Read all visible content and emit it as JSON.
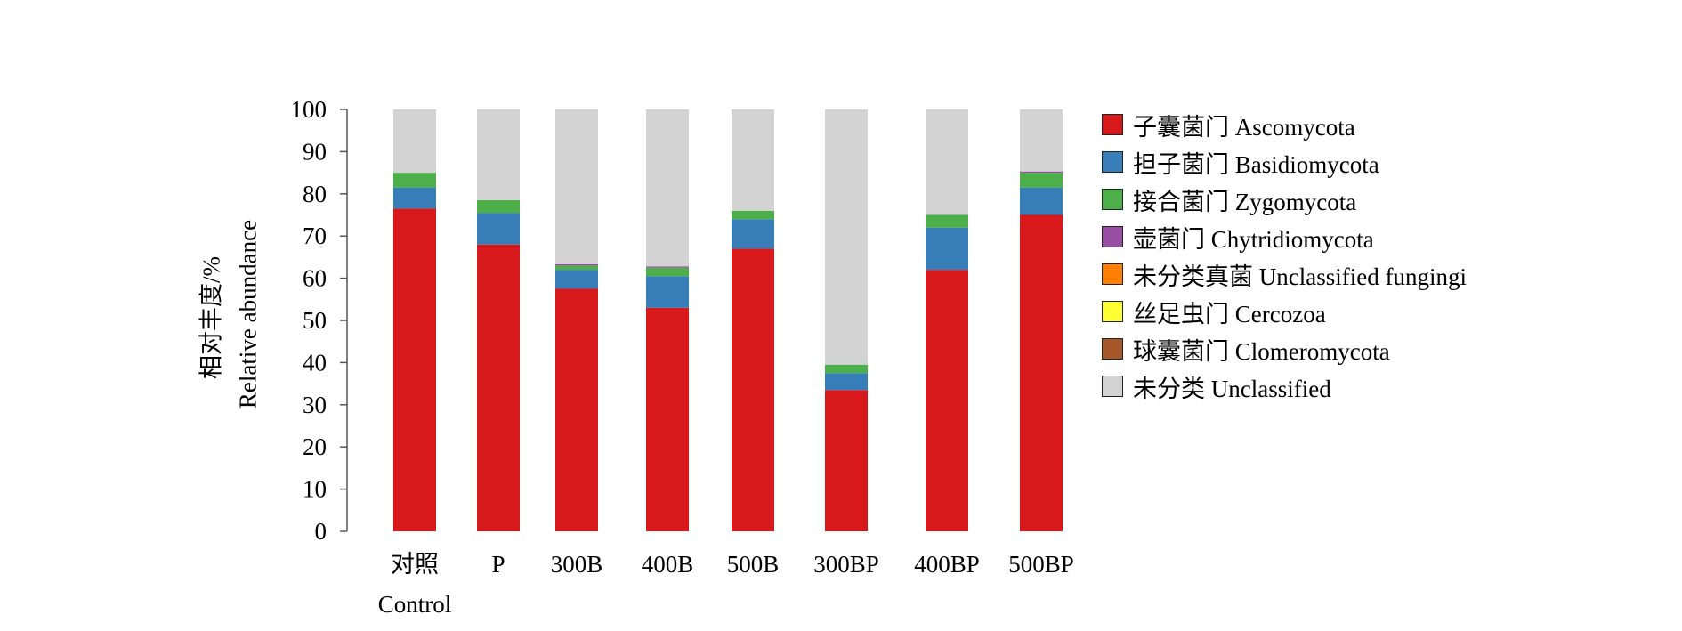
{
  "chart_data": {
    "type": "bar",
    "stacked": true,
    "categories": [
      {
        "line1": "对照",
        "line2": "Control"
      },
      {
        "line1": "P",
        "line2": ""
      },
      {
        "line1": "300B",
        "line2": ""
      },
      {
        "line1": "400B",
        "line2": ""
      },
      {
        "line1": "500B",
        "line2": ""
      },
      {
        "line1": "300BP",
        "line2": ""
      },
      {
        "line1": "400BP",
        "line2": ""
      },
      {
        "line1": "500BP",
        "line2": ""
      }
    ],
    "ylabel": [
      "相对丰度/%",
      "Relative abundance"
    ],
    "ylim": [
      0,
      100
    ],
    "yticks": [
      0,
      10,
      20,
      30,
      40,
      50,
      60,
      70,
      80,
      90,
      100
    ],
    "grid": false,
    "legend_position": "right",
    "series": [
      {
        "name": "子囊菌门 Ascomycota",
        "color": "#d7191c",
        "values": [
          76.5,
          68,
          57.5,
          53,
          67,
          33.5,
          62,
          75
        ]
      },
      {
        "name": "担子菌门 Basidiomycota",
        "color": "#377eb8",
        "values": [
          5,
          7.5,
          4.5,
          7.5,
          7,
          4,
          10,
          6.5
        ]
      },
      {
        "name": "接合菌门 Zygomycota",
        "color": "#4daf4a",
        "values": [
          3.5,
          3,
          1,
          2,
          2,
          2,
          3,
          3.5
        ]
      },
      {
        "name": "壶菌门 Chytridiomycota",
        "color": "#984ea3",
        "values": [
          0,
          0,
          0.3,
          0.3,
          0,
          0,
          0,
          0.3
        ]
      },
      {
        "name": "未分类真菌 Unclassified fungingi",
        "color": "#ff7f00",
        "values": [
          0,
          0,
          0,
          0,
          0,
          0,
          0,
          0
        ]
      },
      {
        "name": "丝足虫门 Cercozoa",
        "color": "#ffff33",
        "values": [
          0,
          0,
          0,
          0,
          0,
          0,
          0,
          0
        ]
      },
      {
        "name": "球囊菌门 Clomeromycota",
        "color": "#a65628",
        "values": [
          0,
          0,
          0,
          0,
          0,
          0,
          0,
          0
        ]
      },
      {
        "name": "未分类 Unclassified",
        "color": "#d3d3d3",
        "values": [
          15,
          21.5,
          36.7,
          37.2,
          24,
          60.5,
          25,
          14.7
        ]
      }
    ]
  }
}
